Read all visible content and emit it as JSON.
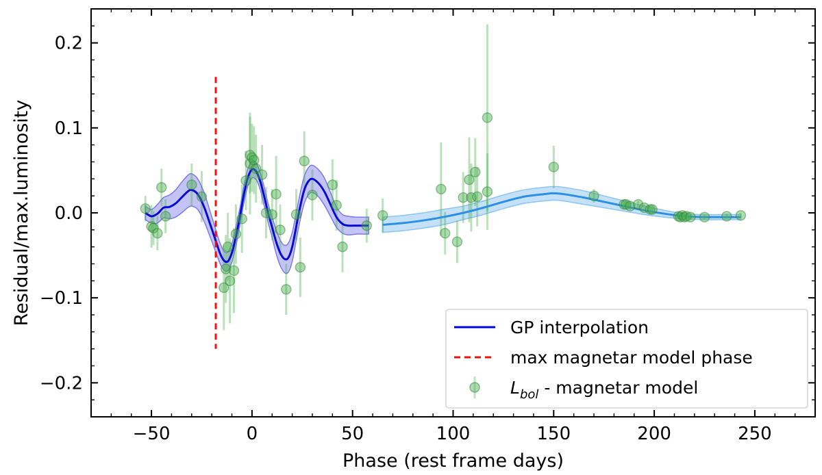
{
  "chart_data": {
    "type": "scatter",
    "title": "",
    "xlabel": "Phase (rest frame days)",
    "ylabel": "Residual/max.luminosity",
    "xlim": [
      -80,
      280
    ],
    "ylim": [
      -0.24,
      0.24
    ],
    "xticks": [
      -50,
      0,
      50,
      100,
      150,
      200,
      250
    ],
    "xtick_labels": [
      "−50",
      "0",
      "50",
      "100",
      "150",
      "200",
      "250"
    ],
    "yticks": [
      -0.2,
      -0.1,
      0.0,
      0.1,
      0.2
    ],
    "ytick_labels": [
      "−0.2",
      "−0.1",
      "0.0",
      "0.1",
      "0.2"
    ],
    "grid": false,
    "legend_position": "bottom-right",
    "legend": [
      {
        "label": "GP interpolation",
        "style": "line",
        "color": "#0000dd"
      },
      {
        "label": "max magnetar model phase",
        "style": "dashed",
        "color": "#ee1111"
      },
      {
        "label_main": "L",
        "label_sub": "bol",
        "label_rest": " - magnetar model",
        "style": "marker",
        "color": "#4caf50"
      }
    ],
    "vline": {
      "x": -18,
      "y0": -0.16,
      "y1": 0.16,
      "color": "#ee1111"
    },
    "colors": {
      "gp_early": "#0a0ad6",
      "gp_early_band": "#7b7bea",
      "gp_late": "#2b8fe6",
      "gp_late_band": "#8cc4f2",
      "points": "#4caf50"
    },
    "series": [
      {
        "name": "GP interpolation",
        "segment": "early",
        "x": [
          -53,
          -50,
          -47,
          -44,
          -41,
          -38,
          -35,
          -32,
          -30,
          -27,
          -24,
          -21,
          -18,
          -16,
          -14,
          -12,
          -10,
          -8,
          -6,
          -4,
          -2,
          0,
          2,
          4,
          6,
          8,
          10,
          12,
          14,
          16,
          18,
          20,
          22,
          24,
          26,
          28,
          30,
          33,
          36,
          39,
          42,
          45,
          48,
          52,
          55,
          58
        ],
        "y": [
          0.0,
          -0.004,
          -0.001,
          0.006,
          0.007,
          0.011,
          0.018,
          0.025,
          0.027,
          0.022,
          0.008,
          -0.012,
          -0.033,
          -0.047,
          -0.056,
          -0.057,
          -0.047,
          -0.028,
          -0.004,
          0.022,
          0.042,
          0.051,
          0.049,
          0.038,
          0.02,
          0.0,
          -0.017,
          -0.034,
          -0.047,
          -0.054,
          -0.053,
          -0.04,
          -0.016,
          0.008,
          0.027,
          0.037,
          0.04,
          0.035,
          0.025,
          0.01,
          -0.005,
          -0.013,
          -0.015,
          -0.015,
          -0.015,
          -0.015
        ],
        "band_halfwidth": [
          0.008,
          0.008,
          0.011,
          0.012,
          0.014,
          0.016,
          0.018,
          0.019,
          0.019,
          0.018,
          0.017,
          0.015,
          0.013,
          0.012,
          0.011,
          0.011,
          0.011,
          0.011,
          0.01,
          0.01,
          0.01,
          0.01,
          0.01,
          0.01,
          0.011,
          0.011,
          0.012,
          0.014,
          0.015,
          0.016,
          0.017,
          0.017,
          0.016,
          0.016,
          0.016,
          0.016,
          0.016,
          0.016,
          0.016,
          0.014,
          0.012,
          0.011,
          0.011,
          0.01,
          0.01,
          0.01
        ]
      },
      {
        "name": "GP interpolation",
        "segment": "late",
        "x": [
          65,
          75,
          85,
          95,
          105,
          115,
          125,
          135,
          145,
          150,
          155,
          165,
          175,
          185,
          195,
          205,
          215,
          225,
          235,
          243
        ],
        "y": [
          -0.014,
          -0.012,
          -0.009,
          -0.005,
          0.0,
          0.006,
          0.013,
          0.019,
          0.022,
          0.023,
          0.022,
          0.018,
          0.013,
          0.008,
          0.003,
          -0.001,
          -0.004,
          -0.005,
          -0.005,
          -0.005
        ],
        "band_halfwidth": [
          0.009,
          0.009,
          0.009,
          0.009,
          0.008,
          0.008,
          0.008,
          0.008,
          0.008,
          0.008,
          0.008,
          0.008,
          0.007,
          0.006,
          0.005,
          0.004,
          0.003,
          0.003,
          0.003,
          0.003
        ]
      },
      {
        "name": "L_bol - magnetar model",
        "x": [
          -53,
          -50,
          -49,
          -47,
          -45,
          -43,
          -30,
          -25,
          -12,
          -14,
          -13,
          -11,
          -9,
          -8,
          -5,
          -3,
          -1,
          -1,
          0,
          1,
          2,
          5,
          7,
          10,
          12,
          14,
          17,
          22,
          24,
          26,
          30,
          40,
          42,
          45,
          57,
          65,
          94,
          96,
          102,
          105,
          108,
          109,
          111,
          112,
          117,
          117,
          150,
          170,
          185,
          186,
          188,
          192,
          195,
          198,
          199,
          212,
          213,
          214,
          215,
          216,
          218,
          225,
          236,
          243
        ],
        "y": [
          0.005,
          -0.016,
          -0.018,
          -0.024,
          0.03,
          -0.004,
          0.033,
          0.019,
          -0.04,
          -0.088,
          -0.066,
          -0.08,
          -0.068,
          -0.025,
          -0.007,
          0.038,
          0.068,
          0.058,
          0.065,
          0.062,
          0.052,
          0.045,
          0.0,
          -0.002,
          0.022,
          -0.02,
          -0.09,
          -0.002,
          -0.064,
          0.061,
          0.021,
          0.033,
          0.009,
          -0.04,
          -0.015,
          -0.003,
          0.028,
          -0.024,
          -0.034,
          0.018,
          0.039,
          0.018,
          0.048,
          0.019,
          0.112,
          0.025,
          0.054,
          0.02,
          0.01,
          0.01,
          0.008,
          0.01,
          0.006,
          0.004,
          0.004,
          -0.004,
          -0.005,
          -0.003,
          -0.005,
          -0.004,
          -0.005,
          -0.005,
          -0.004,
          -0.003
        ],
        "yerr": [
          0.015,
          0.025,
          0.02,
          0.02,
          0.022,
          0.02,
          0.025,
          0.03,
          0.04,
          0.05,
          0.04,
          0.05,
          0.05,
          0.035,
          0.04,
          0.035,
          0.045,
          0.06,
          0.04,
          0.04,
          0.04,
          0.035,
          0.03,
          0.03,
          0.045,
          0.03,
          0.03,
          0.03,
          0.035,
          0.035,
          0.03,
          0.03,
          0.03,
          0.03,
          0.02,
          0.02,
          0.055,
          0.025,
          0.025,
          0.03,
          0.05,
          0.04,
          0.04,
          0.035,
          0.11,
          0.045,
          0.025,
          0.008,
          0.004,
          0.004,
          0.004,
          0.004,
          0.004,
          0.004,
          0.004,
          0.003,
          0.003,
          0.003,
          0.003,
          0.003,
          0.003,
          0.003,
          0.003,
          0.003
        ]
      }
    ]
  }
}
